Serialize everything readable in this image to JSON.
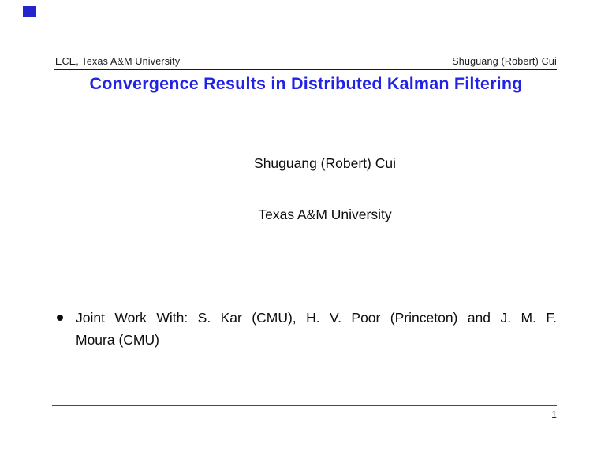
{
  "slide": {
    "background": "#ffffff",
    "accent_color": "#2222E6",
    "corner_square_color": "#2525CD",
    "header": {
      "left_text": "ECE, Texas A&M University",
      "right_text": "Shuguang (Robert) Cui"
    },
    "title": "Convergence Results in Distributed Kalman Filtering",
    "author": "Shuguang (Robert) Cui",
    "affiliation": "Texas A&M University",
    "bullet": {
      "line1": "Joint Work With: S. Kar (CMU), H. V. Poor (Princeton) and J. M. F.",
      "line2": "Moura (CMU)"
    },
    "footer": {
      "page_number": "1"
    }
  }
}
